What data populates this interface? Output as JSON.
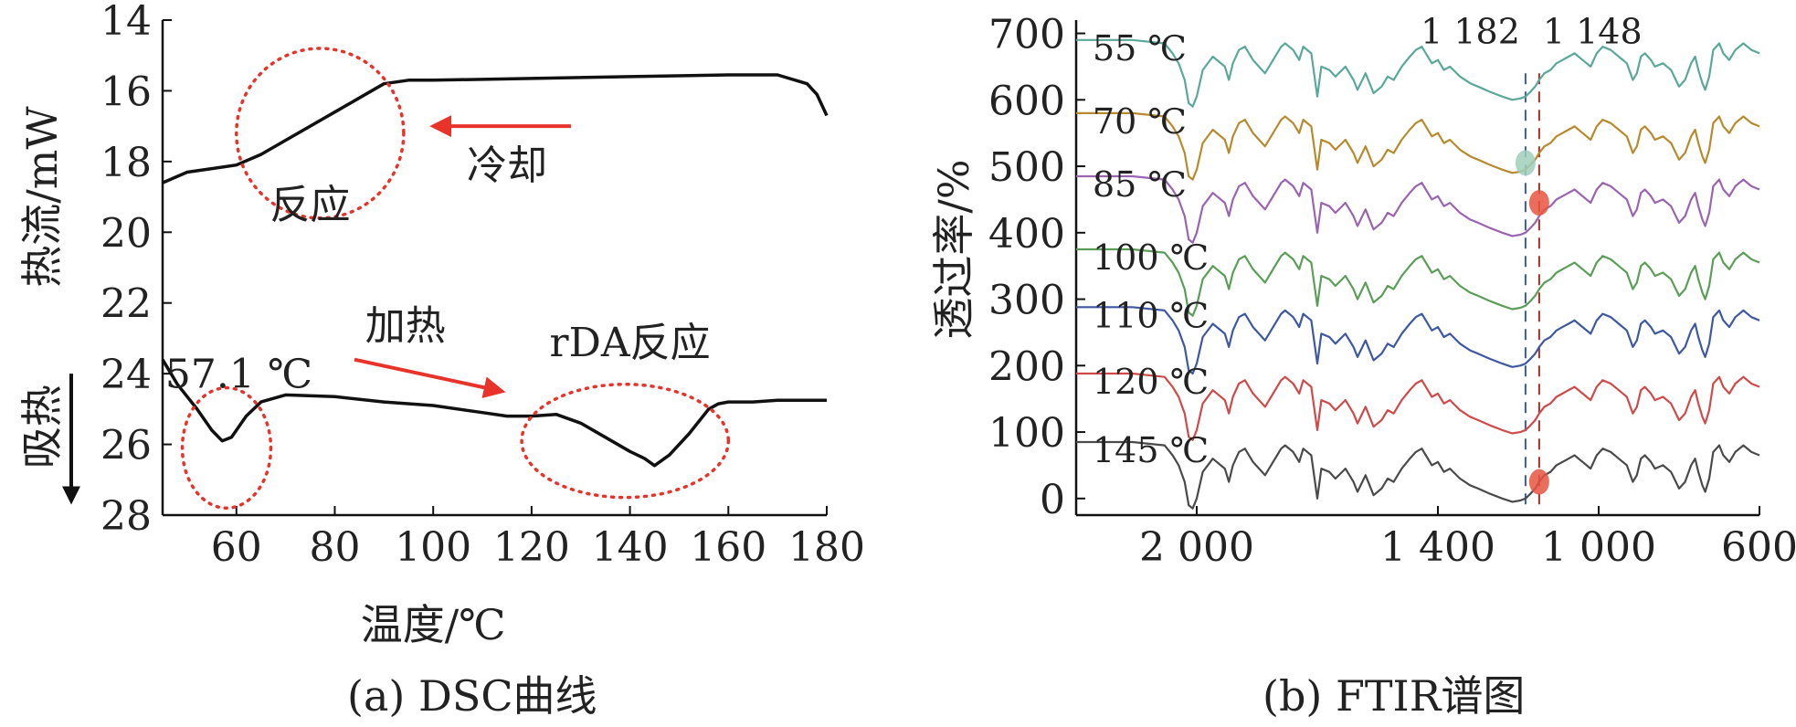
{
  "panels": [
    {
      "id": "a",
      "caption": "(a) DSC曲线",
      "chart_data": {
        "type": "line",
        "xlabel": "温度/℃",
        "ylabel": "热流/mW",
        "endo_label": "吸热",
        "xlim": [
          45,
          180
        ],
        "ylim": [
          14,
          28
        ],
        "y_inverted": true,
        "x_ticks": [
          60,
          80,
          100,
          120,
          140,
          160,
          180
        ],
        "y_ticks": [
          14,
          16,
          18,
          20,
          22,
          24,
          26,
          28
        ],
        "series": [
          {
            "x": [
              45,
              50,
              55,
              60,
              65,
              70,
              75,
              80,
              85,
              90,
              95,
              100,
              120,
              140,
              160,
              170,
              176,
              178,
              180
            ],
            "y": [
              18.6,
              18.3,
              18.2,
              18.1,
              17.8,
              17.4,
              17.0,
              16.6,
              16.2,
              15.8,
              15.7,
              15.7,
              15.65,
              15.6,
              15.55,
              15.55,
              15.8,
              16.1,
              16.7
            ]
          },
          {
            "x": [
              45,
              48,
              52,
              55,
              57.1,
              59,
              62,
              65,
              70,
              80,
              90,
              100,
              110,
              115,
              120,
              125,
              130,
              135,
              140,
              143,
              145,
              146,
              148,
              152,
              156,
              158,
              160,
              165,
              170,
              180
            ],
            "y": [
              23.6,
              24.3,
              25.0,
              25.6,
              25.9,
              25.8,
              25.2,
              24.8,
              24.6,
              24.65,
              24.8,
              24.9,
              25.1,
              25.2,
              25.2,
              25.15,
              25.4,
              25.8,
              26.2,
              26.4,
              26.6,
              26.5,
              26.3,
              25.7,
              25.0,
              24.85,
              24.8,
              24.8,
              24.75,
              24.75
            ]
          }
        ],
        "annotations": [
          {
            "text": "冷却",
            "kind": "arrow-left",
            "color": "#e8332b",
            "x1": 128,
            "y1": 17.0,
            "x2": 100,
            "y2": 17.0
          },
          {
            "text": "反应",
            "kind": "label",
            "x": 75,
            "y": 19.6
          },
          {
            "text": "加热",
            "kind": "arrow-right",
            "color": "#e8332b",
            "x1": 84,
            "y1": 23.6,
            "x2": 114,
            "y2": 24.5
          },
          {
            "text": "57.1 ℃",
            "kind": "label",
            "x": 60.5,
            "y": 24.4
          },
          {
            "text": "rDA反应",
            "kind": "label",
            "x": 140,
            "y": 23.5
          }
        ],
        "highlights": [
          {
            "shape": "ellipse",
            "color": "#e8332b",
            "cx": 77,
            "cy": 17.2,
            "rx": 17,
            "ry": 2.4
          },
          {
            "shape": "ellipse",
            "color": "#e8332b",
            "cx": 58,
            "cy": 26.1,
            "rx": 9,
            "ry": 1.7
          },
          {
            "shape": "ellipse",
            "color": "#e8332b",
            "cx": 139,
            "cy": 25.9,
            "rx": 21,
            "ry": 1.6
          }
        ]
      }
    },
    {
      "id": "b",
      "caption": "(b) FTIR谱图",
      "chart_data": {
        "type": "line",
        "xlabel": "",
        "ylabel": "透过率/%",
        "xlim": [
          2300,
          600
        ],
        "x_reversed": true,
        "ylim": [
          -25,
          720
        ],
        "x_ticks": [
          2000,
          1400,
          1000,
          600
        ],
        "x_tick_labels": [
          "2 000",
          "1 400",
          "1 000",
          "600"
        ],
        "y_ticks": [
          0,
          100,
          200,
          300,
          400,
          500,
          600,
          700
        ],
        "markers": [
          {
            "text": "1 182",
            "x": 1182,
            "color": "#3a5ba8"
          },
          {
            "text": "1 148",
            "x": 1148,
            "color": "#a3302c"
          }
        ],
        "profile": {
          "x": [
            2300,
            2230,
            2160,
            2080,
            2060,
            2045,
            2030,
            2020,
            2010,
            2000,
            1985,
            1960,
            1930,
            1920,
            1910,
            1895,
            1880,
            1860,
            1830,
            1800,
            1790,
            1780,
            1760,
            1745,
            1735,
            1715,
            1700,
            1690,
            1670,
            1655,
            1630,
            1610,
            1600,
            1580,
            1560,
            1540,
            1525,
            1510,
            1490,
            1470,
            1455,
            1440,
            1430,
            1415,
            1400,
            1385,
            1370,
            1345,
            1320,
            1300,
            1270,
            1240,
            1215,
            1195,
            1182,
            1170,
            1158,
            1148,
            1135,
            1120,
            1105,
            1090,
            1075,
            1060,
            1040,
            1020,
            1005,
            990,
            970,
            950,
            930,
            915,
            905,
            895,
            885,
            870,
            860,
            840,
            820,
            800,
            785,
            770,
            760,
            752,
            742,
            735,
            725,
            715,
            700,
            690,
            675,
            660,
            640,
            620,
            600
          ],
          "dy": [
            0,
            0,
            0,
            -5,
            -20,
            -35,
            -60,
            -95,
            -100,
            -85,
            -45,
            -25,
            -40,
            -60,
            -35,
            -15,
            -10,
            -30,
            -50,
            -20,
            -10,
            -5,
            -15,
            -30,
            -10,
            -20,
            -85,
            -40,
            -45,
            -55,
            -40,
            -60,
            -75,
            -50,
            -80,
            -70,
            -55,
            -60,
            -40,
            -25,
            -15,
            -10,
            -20,
            -35,
            -30,
            -45,
            -40,
            -55,
            -65,
            -70,
            -78,
            -85,
            -90,
            -88,
            -85,
            -78,
            -70,
            -60,
            -50,
            -45,
            -35,
            -30,
            -25,
            -20,
            -30,
            -40,
            -20,
            -10,
            -15,
            -25,
            -35,
            -60,
            -50,
            -25,
            -20,
            -30,
            -40,
            -35,
            -45,
            -70,
            -60,
            -35,
            -25,
            -45,
            -65,
            -75,
            -55,
            -15,
            -5,
            -20,
            -30,
            -15,
            -5,
            -15,
            -20
          ]
        },
        "series": [
          {
            "name": "55 ℃",
            "color": "#5aa89a",
            "offset": 690,
            "highlight": null
          },
          {
            "name": "70 ℃",
            "color": "#b88a2e",
            "offset": 580,
            "highlight": {
              "x": 1182,
              "dy": -75,
              "color": "#9fcfbb"
            }
          },
          {
            "name": "85 ℃",
            "color": "#9a64b0",
            "offset": 485,
            "highlight": {
              "x": 1148,
              "dy": -40,
              "color": "#e8533f"
            }
          },
          {
            "name": "100 ℃",
            "color": "#5b9e58",
            "offset": 375,
            "highlight": null
          },
          {
            "name": "110 ℃",
            "color": "#3e58a2",
            "offset": 288,
            "highlight": null
          },
          {
            "name": "120 ℃",
            "color": "#cf4a48",
            "offset": 188,
            "highlight": null
          },
          {
            "name": "145 ℃",
            "color": "#4a4a4a",
            "offset": 85,
            "highlight": {
              "x": 1148,
              "dy": -60,
              "color": "#e8533f"
            }
          }
        ]
      }
    }
  ]
}
